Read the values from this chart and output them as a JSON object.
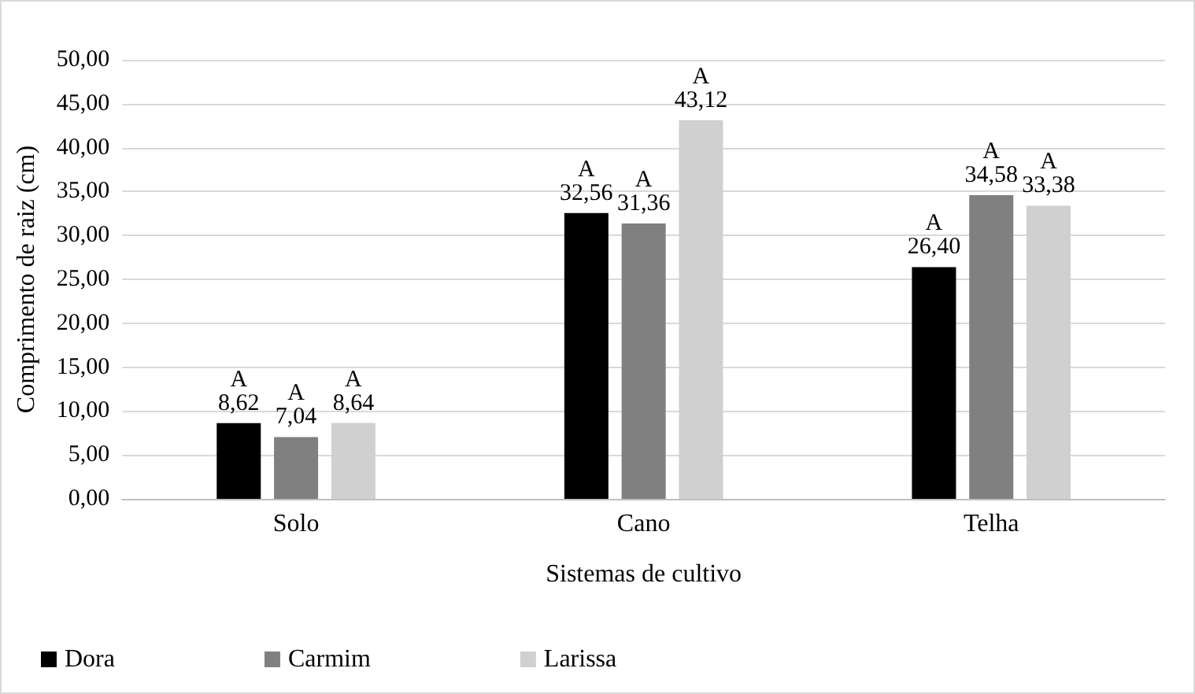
{
  "chart_data": {
    "type": "bar",
    "xlabel": "Sistemas de cultivo",
    "ylabel": "Comprimento de raiz (cm)",
    "categories": [
      "Solo",
      "Cano",
      "Telha"
    ],
    "series": [
      {
        "name": "Dora",
        "color": "#000000",
        "values": [
          8.62,
          32.56,
          26.4
        ],
        "value_labels": [
          "8,62",
          "32,56",
          "26,40"
        ]
      },
      {
        "name": "Carmim",
        "color": "#808080",
        "values": [
          7.04,
          31.36,
          34.58
        ],
        "value_labels": [
          "7,04",
          "31,36",
          "34,58"
        ]
      },
      {
        "name": "Larissa",
        "color": "#d0d0d0",
        "values": [
          8.64,
          43.12,
          33.38
        ],
        "value_labels": [
          "8,64",
          "43,12",
          "33,38"
        ]
      }
    ],
    "annotations": [
      "A",
      "A",
      "A",
      "A",
      "A",
      "A",
      "A",
      "A",
      "A"
    ],
    "ylim": [
      0,
      50
    ],
    "yticks": [
      {
        "value": 0,
        "label": "0,00"
      },
      {
        "value": 5,
        "label": "5,00"
      },
      {
        "value": 10,
        "label": "10,00"
      },
      {
        "value": 15,
        "label": "15,00"
      },
      {
        "value": 20,
        "label": "20,00"
      },
      {
        "value": 25,
        "label": "25,00"
      },
      {
        "value": 30,
        "label": "30,00"
      },
      {
        "value": 35,
        "label": "35,00"
      },
      {
        "value": 40,
        "label": "40,00"
      },
      {
        "value": 45,
        "label": "45,00"
      },
      {
        "value": 50,
        "label": "50,00"
      }
    ],
    "grid": "y",
    "legend": "bottom left"
  }
}
